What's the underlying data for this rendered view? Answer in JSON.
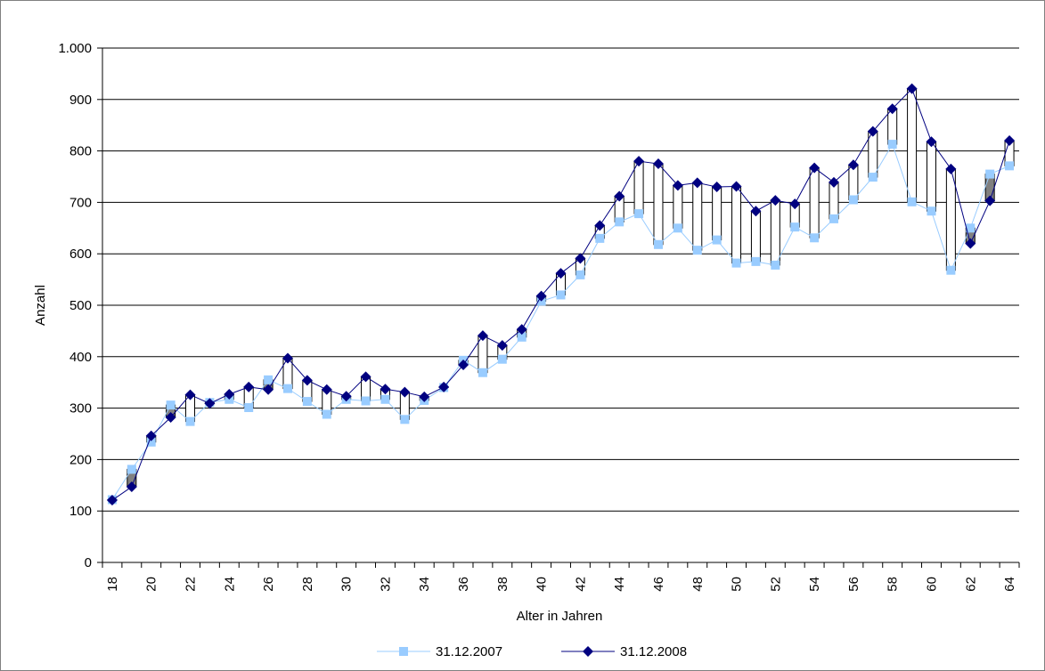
{
  "chart_data": {
    "type": "line",
    "xlabel": "Alter in Jahren",
    "ylabel": "Anzahl",
    "ylim": [
      0,
      1000
    ],
    "y_ticks": [
      0,
      100,
      200,
      300,
      400,
      500,
      600,
      700,
      800,
      900,
      1000
    ],
    "y_tick_labels": [
      "0",
      "100",
      "200",
      "300",
      "400",
      "500",
      "600",
      "700",
      "800",
      "900",
      "1.000"
    ],
    "x": [
      18,
      19,
      20,
      21,
      22,
      23,
      24,
      25,
      26,
      27,
      28,
      29,
      30,
      31,
      32,
      33,
      34,
      35,
      36,
      37,
      38,
      39,
      40,
      41,
      42,
      43,
      44,
      45,
      46,
      47,
      48,
      49,
      50,
      51,
      52,
      53,
      54,
      55,
      56,
      57,
      58,
      59,
      60,
      61,
      62,
      63,
      64
    ],
    "x_tick_labels": [
      "18",
      "20",
      "22",
      "24",
      "26",
      "28",
      "30",
      "32",
      "34",
      "36",
      "38",
      "40",
      "42",
      "44",
      "46",
      "48",
      "50",
      "52",
      "54",
      "56",
      "58",
      "60",
      "62",
      "64"
    ],
    "grid": "horizontal",
    "legend_position": "bottom",
    "high_low_lines": true,
    "up_down_bars": true,
    "series": [
      {
        "name": "31.12.2007",
        "color": "#99ccff",
        "marker": "square",
        "values": [
          122,
          181,
          234,
          306,
          274,
          311,
          317,
          301,
          355,
          338,
          313,
          288,
          317,
          314,
          317,
          278,
          315,
          340,
          393,
          369,
          395,
          438,
          508,
          520,
          559,
          630,
          662,
          678,
          618,
          650,
          607,
          627,
          582,
          585,
          578,
          652,
          631,
          668,
          705,
          749,
          813,
          701,
          683,
          568,
          650,
          755,
          771
        ]
      },
      {
        "name": "31.12.2008",
        "color": "#000080",
        "marker": "diamond",
        "values": [
          121,
          147,
          246,
          282,
          326,
          309,
          327,
          341,
          336,
          397,
          354,
          336,
          323,
          361,
          337,
          331,
          322,
          341,
          384,
          441,
          422,
          453,
          518,
          562,
          591,
          655,
          712,
          780,
          775,
          733,
          738,
          730,
          731,
          683,
          704,
          697,
          767,
          739,
          773,
          838,
          882,
          921,
          818,
          765,
          620,
          703,
          820
        ]
      }
    ]
  }
}
